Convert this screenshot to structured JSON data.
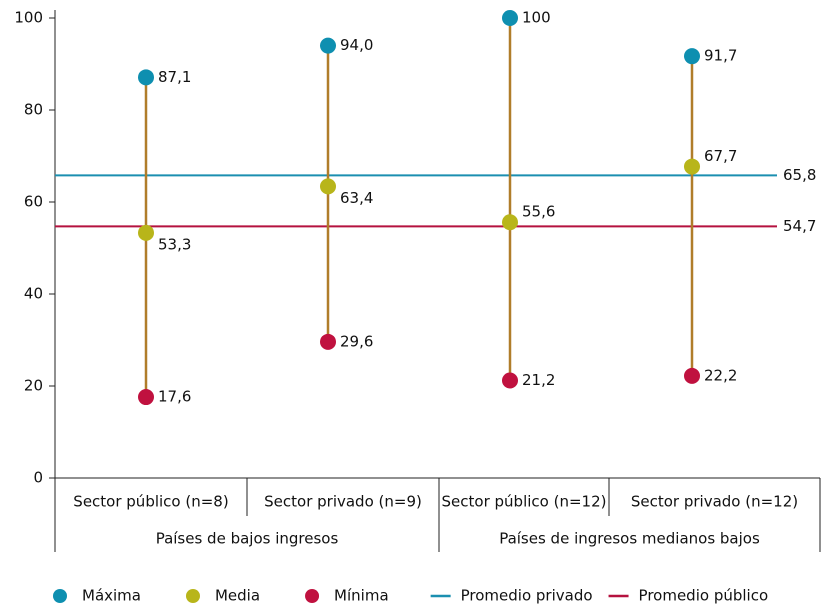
{
  "chart_data": {
    "type": "range-dot",
    "categories": [
      "Sector público (n=8)",
      "Sector privado (n=9)",
      "Sector público (n=12)",
      "Sector privado (n=12)"
    ],
    "groups": [
      "Países de bajos ingresos",
      "Países de ingresos medianos bajos"
    ],
    "range_color": "#b07d2a",
    "series": [
      {
        "name": "Máxima",
        "color": "#0e8fb0",
        "values": [
          87.1,
          94.0,
          100,
          91.7
        ],
        "value_labels": [
          "87,1",
          "94,0",
          "100",
          "91,7"
        ]
      },
      {
        "name": "Media",
        "color": "#b8b51a",
        "values": [
          53.3,
          63.4,
          55.6,
          67.7
        ],
        "value_labels": [
          "53,3",
          "63,4",
          "55,6",
          "67,7"
        ]
      },
      {
        "name": "Mínima",
        "color": "#c0113f",
        "values": [
          17.6,
          29.6,
          21.2,
          22.2
        ],
        "value_labels": [
          "17,6",
          "29,6",
          "21,2",
          "22,2"
        ]
      }
    ],
    "reference_lines": [
      {
        "name": "Promedio privado",
        "color": "#1b8fb0",
        "value": 65.8,
        "value_label": "65,8"
      },
      {
        "name": "Promedio público",
        "color": "#b5123f",
        "value": 54.7,
        "value_label": "54,7"
      }
    ],
    "ylim": [
      0,
      100
    ],
    "yticks": [
      0,
      20,
      40,
      60,
      80,
      100
    ]
  }
}
